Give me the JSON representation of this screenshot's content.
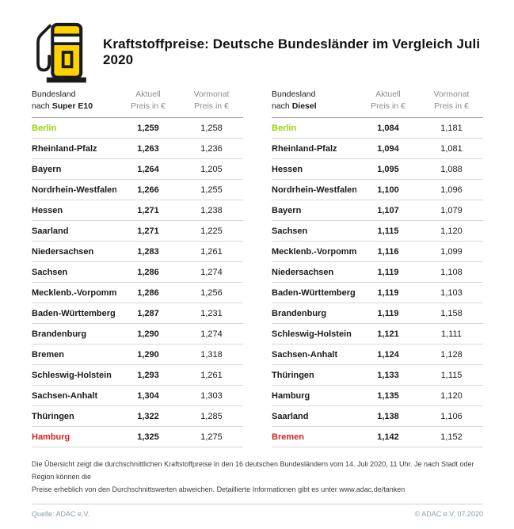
{
  "colors": {
    "yellow": "#FFD200",
    "green": "#97D700",
    "red": "#D2232A",
    "footer_teal": "#87A0AA"
  },
  "header": {
    "title": "Kraftstoffpreise: Deutsche Bundesländer im Vergleich Juli 2020",
    "icon": "fuel-pump-icon"
  },
  "table_heads": [
    {
      "col1_line1": "Bundesland",
      "col1_prefix": "nach ",
      "col1_fuel": "Super E10",
      "col2_line1": "Aktuell",
      "col2_line2": "Preis in €",
      "col3_line1": "Vormonat",
      "col3_line2": "Preis in €"
    },
    {
      "col1_line1": "Bundesland",
      "col1_prefix": "nach ",
      "col1_fuel": "Diesel",
      "col2_line1": "Aktuell",
      "col2_line2": "Preis in €",
      "col3_line1": "Vormonat",
      "col3_line2": "Preis in €"
    }
  ],
  "chart_data": [
    {
      "type": "table",
      "title": "Bundesland nach Super E10",
      "columns": [
        "Bundesland nach Super E10",
        "Aktuell Preis in €",
        "Vormonat Preis in €"
      ],
      "rows": [
        {
          "state": "Berlin",
          "aktuell": "1,259",
          "vormonat": "1,258",
          "highlight": "green"
        },
        {
          "state": "Rheinland-Pfalz",
          "aktuell": "1,263",
          "vormonat": "1,236"
        },
        {
          "state": "Bayern",
          "aktuell": "1,264",
          "vormonat": "1,205"
        },
        {
          "state": "Nordrhein-Westfalen",
          "aktuell": "1,266",
          "vormonat": "1,255"
        },
        {
          "state": "Hessen",
          "aktuell": "1,271",
          "vormonat": "1,238"
        },
        {
          "state": "Saarland",
          "aktuell": "1,271",
          "vormonat": "1,225"
        },
        {
          "state": "Niedersachsen",
          "aktuell": "1,283",
          "vormonat": "1,261"
        },
        {
          "state": "Sachsen",
          "aktuell": "1,286",
          "vormonat": "1,274"
        },
        {
          "state": "Mecklenb.-Vorpommern",
          "aktuell": "1,286",
          "vormonat": "1,256"
        },
        {
          "state": "Baden-Württemberg",
          "aktuell": "1,287",
          "vormonat": "1,231"
        },
        {
          "state": "Brandenburg",
          "aktuell": "1,290",
          "vormonat": "1,274"
        },
        {
          "state": "Bremen",
          "aktuell": "1,290",
          "vormonat": "1,318"
        },
        {
          "state": "Schleswig-Holstein",
          "aktuell": "1,293",
          "vormonat": "1,261"
        },
        {
          "state": "Sachsen-Anhalt",
          "aktuell": "1,304",
          "vormonat": "1,303"
        },
        {
          "state": "Thüringen",
          "aktuell": "1,322",
          "vormonat": "1,285"
        },
        {
          "state": "Hamburg",
          "aktuell": "1,325",
          "vormonat": "1,275",
          "highlight": "red"
        }
      ]
    },
    {
      "type": "table",
      "title": "Bundesland nach Diesel",
      "columns": [
        "Bundesland nach Diesel",
        "Aktuell Preis in €",
        "Vormonat Preis in €"
      ],
      "rows": [
        {
          "state": "Berlin",
          "aktuell": "1,084",
          "vormonat": "1,181",
          "highlight": "green"
        },
        {
          "state": "Rheinland-Pfalz",
          "aktuell": "1,094",
          "vormonat": "1,081"
        },
        {
          "state": "Hessen",
          "aktuell": "1,095",
          "vormonat": "1,088"
        },
        {
          "state": "Nordrhein-Westfalen",
          "aktuell": "1,100",
          "vormonat": "1,096"
        },
        {
          "state": "Bayern",
          "aktuell": "1,107",
          "vormonat": "1,079"
        },
        {
          "state": "Sachsen",
          "aktuell": "1,115",
          "vormonat": "1,120"
        },
        {
          "state": "Mecklenb.-Vorpommern",
          "aktuell": "1,116",
          "vormonat": "1,099"
        },
        {
          "state": "Niedersachsen",
          "aktuell": "1,119",
          "vormonat": "1,108"
        },
        {
          "state": "Baden-Württemberg",
          "aktuell": "1,119",
          "vormonat": "1,103"
        },
        {
          "state": "Brandenburg",
          "aktuell": "1,119",
          "vormonat": "1,158"
        },
        {
          "state": "Schleswig-Holstein",
          "aktuell": "1,121",
          "vormonat": "1,111"
        },
        {
          "state": "Sachsen-Anhalt",
          "aktuell": "1,124",
          "vormonat": "1,128"
        },
        {
          "state": "Thüringen",
          "aktuell": "1,133",
          "vormonat": "1,115"
        },
        {
          "state": "Hamburg",
          "aktuell": "1,135",
          "vormonat": "1,120"
        },
        {
          "state": "Saarland",
          "aktuell": "1,138",
          "vormonat": "1,106"
        },
        {
          "state": "Bremen",
          "aktuell": "1,142",
          "vormonat": "1,152",
          "highlight": "red"
        }
      ]
    }
  ],
  "footnote": {
    "line1": "Die Übersicht zeigt die durchschnittlichen Kraftstoffpreise in den 16 deutschen Bundesländern vom 14. Juli 2020, 11 Uhr.  Je nach Stadt oder Region können die",
    "line2": "Preise erheblich von den Durchschnittswerten abweichen. Detaillierte Informationen gibt es unter www.adac.de/tanken"
  },
  "footer": {
    "source": "Quelle: ADAC e.V.",
    "copyright": "© ADAC e.V. 07.2020"
  }
}
